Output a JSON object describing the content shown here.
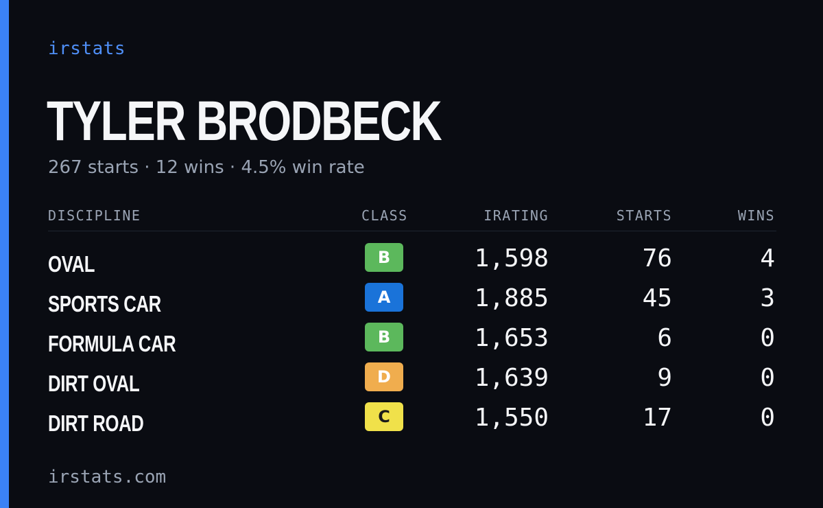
{
  "brand": "irstats",
  "driver": {
    "name": "TYLER BRODBECK",
    "summary": "267 starts · 12 wins · 4.5% win rate"
  },
  "table": {
    "headers": {
      "discipline": "DISCIPLINE",
      "class": "CLASS",
      "irating": "IRATING",
      "starts": "STARTS",
      "wins": "WINS"
    },
    "rows": [
      {
        "discipline": "OVAL",
        "class": "B",
        "class_color": "#5cb85c",
        "class_text_color": "#ffffff",
        "irating": "1,598",
        "starts": "76",
        "wins": "4"
      },
      {
        "discipline": "SPORTS CAR",
        "class": "A",
        "class_color": "#1a73d9",
        "class_text_color": "#ffffff",
        "irating": "1,885",
        "starts": "45",
        "wins": "3"
      },
      {
        "discipline": "FORMULA CAR",
        "class": "B",
        "class_color": "#5cb85c",
        "class_text_color": "#ffffff",
        "irating": "1,653",
        "starts": "6",
        "wins": "0"
      },
      {
        "discipline": "DIRT OVAL",
        "class": "D",
        "class_color": "#f0ad4e",
        "class_text_color": "#ffffff",
        "irating": "1,639",
        "starts": "9",
        "wins": "0"
      },
      {
        "discipline": "DIRT ROAD",
        "class": "C",
        "class_color": "#f0e14a",
        "class_text_color": "#1a1a1a",
        "irating": "1,550",
        "starts": "17",
        "wins": "0"
      }
    ]
  },
  "footer": "irstats.com",
  "colors": {
    "accent": "#3b82f6",
    "background": "#0a0c12",
    "muted_text": "#9aa4b4"
  }
}
